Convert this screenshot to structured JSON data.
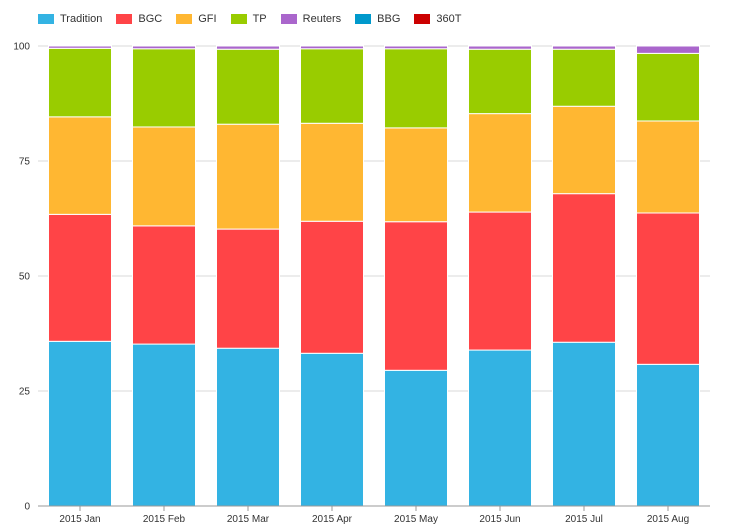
{
  "chart_data": {
    "type": "bar",
    "stacked": true,
    "categories": [
      "2015 Jan",
      "2015 Feb",
      "2015 Mar",
      "2015 Apr",
      "2015 May",
      "2015 Jun",
      "2015 Jul",
      "2015 Aug"
    ],
    "series": [
      {
        "name": "Tradition",
        "color": "#33b3e3",
        "values": [
          35.8,
          35.2,
          34.3,
          33.2,
          29.5,
          33.9,
          35.6,
          30.8
        ]
      },
      {
        "name": "BGC",
        "color": "#ff4447",
        "values": [
          27.6,
          25.7,
          25.9,
          28.7,
          32.3,
          30.0,
          32.3,
          32.9
        ]
      },
      {
        "name": "GFI",
        "color": "#ffb732",
        "values": [
          21.2,
          21.5,
          22.8,
          21.3,
          20.4,
          21.4,
          19.0,
          20.0
        ]
      },
      {
        "name": "TP",
        "color": "#99cc00",
        "values": [
          14.9,
          17.0,
          16.3,
          16.2,
          17.2,
          14.0,
          12.4,
          14.7
        ]
      },
      {
        "name": "Reuters",
        "color": "#aa66cc",
        "values": [
          0.5,
          0.6,
          0.7,
          0.6,
          0.6,
          0.7,
          0.7,
          1.6
        ]
      },
      {
        "name": "BBG",
        "color": "#0099cc",
        "values": [
          0,
          0,
          0,
          0,
          0,
          0,
          0,
          0
        ]
      },
      {
        "name": "360T",
        "color": "#cc0000",
        "values": [
          0,
          0,
          0,
          0,
          0,
          0,
          0,
          0
        ]
      }
    ],
    "y_ticks": [
      "0",
      "25",
      "50",
      "75",
      "100"
    ],
    "ylim": [
      0,
      100
    ],
    "grid": true,
    "legend_position": "top-left",
    "title": "",
    "xlabel": "",
    "ylabel": ""
  }
}
